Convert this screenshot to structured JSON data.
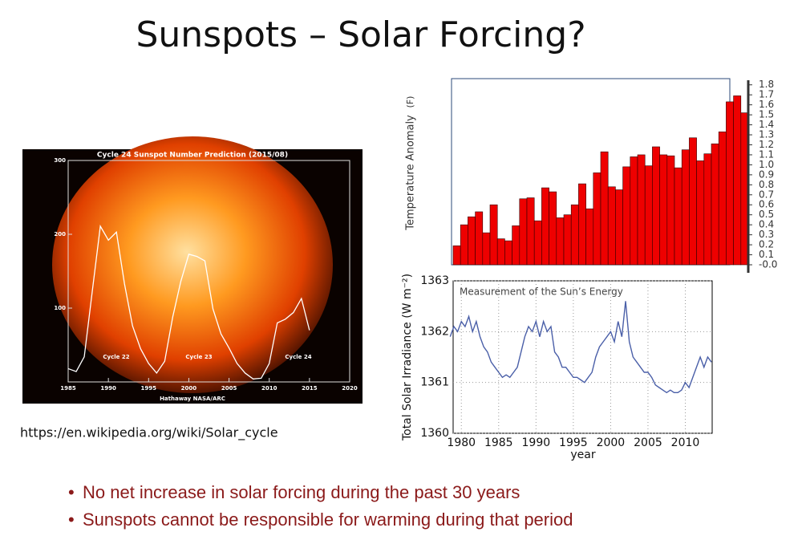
{
  "title": "Sunspots – Solar Forcing?",
  "source_url": "https://en.wikipedia.org/wiki/Solar_cycle",
  "bullets": [
    "No net increase in solar forcing during the past 30 years",
    "Sunspots cannot be responsible for warming during that period"
  ],
  "chart_data": [
    {
      "type": "line",
      "title": "Cycle 24 Sunspot Number Prediction (2015/08)",
      "credit": "Hathaway NASA/ARC",
      "annotations": [
        "Cycle 22",
        "Cycle 23",
        "Cycle 24"
      ],
      "x": [
        1985,
        1986,
        1987,
        1988,
        1989,
        1990,
        1991,
        1992,
        1993,
        1994,
        1995,
        1996,
        1997,
        1998,
        1999,
        2000,
        2001,
        2002,
        2003,
        2004,
        2005,
        2006,
        2007,
        2008,
        2009,
        2010,
        2011,
        2012,
        2013,
        2014,
        2015
      ],
      "series": [
        {
          "color": "#ffffff",
          "values": [
            18,
            14,
            34,
            123,
            211,
            192,
            203,
            133,
            76,
            45,
            25,
            12,
            28,
            88,
            136,
            173,
            170,
            164,
            99,
            65,
            46,
            25,
            12,
            4,
            5,
            25,
            80,
            85,
            94,
            113,
            70
          ]
        }
      ],
      "xlim": [
        1985,
        2020
      ],
      "xticks": [
        1985,
        1990,
        1995,
        2000,
        2005,
        2010,
        2015,
        2020
      ],
      "ylim": [
        0,
        300
      ],
      "yticks": [
        100,
        200,
        300
      ]
    },
    {
      "type": "bar",
      "y_label": "Temperature Anomaly",
      "y_unit": "(F)",
      "color": "#ee0000",
      "categories": [
        null,
        null,
        null,
        null,
        null,
        null,
        null,
        null,
        null,
        null,
        null,
        null,
        null,
        null,
        null,
        null,
        null,
        null,
        null,
        null,
        null,
        null,
        null,
        null,
        null,
        null,
        null,
        null,
        null,
        null,
        null,
        null,
        null,
        null,
        null,
        null,
        null,
        null,
        null,
        null
      ],
      "values": [
        0.19,
        0.4,
        0.48,
        0.53,
        0.32,
        0.6,
        0.26,
        0.24,
        0.39,
        0.66,
        0.67,
        0.44,
        0.77,
        0.73,
        0.47,
        0.5,
        0.6,
        0.81,
        0.56,
        0.92,
        1.13,
        0.78,
        0.75,
        0.98,
        1.08,
        1.1,
        0.99,
        1.18,
        1.1,
        1.09,
        0.97,
        1.15,
        1.27,
        1.04,
        1.11,
        1.21,
        1.33,
        1.63,
        1.69,
        1.52
      ],
      "ylim": [
        0,
        1.85
      ],
      "yticks": [
        1.8,
        1.7,
        1.6,
        1.5,
        1.4,
        1.3,
        1.2,
        1.1,
        {
          "value": 1,
          "label": "1.0"
        },
        0.9,
        0.8,
        0.7,
        0.6,
        0.5,
        0.4,
        0.3,
        0.2,
        0.1,
        {
          "value": 0,
          "label": "-0.0"
        }
      ]
    },
    {
      "type": "line",
      "title": "Measurement of the Sun’s Energy",
      "x_label": "year",
      "y_label": "Total Solar Irradiance (W m⁻²)",
      "grid": true,
      "x": [
        1978.5,
        1979,
        1979.5,
        1980,
        1980.5,
        1981,
        1981.5,
        1982,
        1982.5,
        1983,
        1983.5,
        1984,
        1984.5,
        1985,
        1985.5,
        1986,
        1986.5,
        1987,
        1987.5,
        1988,
        1988.5,
        1989,
        1989.5,
        1990,
        1990.5,
        1991,
        1991.5,
        1992,
        1992.5,
        1993,
        1993.5,
        1994,
        1994.5,
        1995,
        1995.5,
        1996,
        1996.5,
        1997,
        1997.5,
        1998,
        1998.5,
        1999,
        1999.5,
        2000,
        2000.5,
        2001,
        2001.5,
        2002,
        2002.5,
        2003,
        2003.5,
        2004,
        2004.5,
        2005,
        2005.5,
        2006,
        2006.5,
        2007,
        2007.5,
        2008,
        2008.5,
        2009,
        2009.5,
        2010,
        2010.5,
        2011,
        2011.5,
        2012,
        2012.5,
        2013,
        2013.5
      ],
      "series": [
        {
          "color": "#4a5fa8",
          "values": [
            1361.9,
            1362.1,
            1362.0,
            1362.2,
            1362.1,
            1362.3,
            1362.0,
            1362.2,
            1361.9,
            1361.7,
            1361.6,
            1361.4,
            1361.3,
            1361.2,
            1361.1,
            1361.15,
            1361.1,
            1361.2,
            1361.3,
            1361.6,
            1361.9,
            1362.1,
            1362.0,
            1362.2,
            1361.9,
            1362.2,
            1362.0,
            1362.1,
            1361.6,
            1361.5,
            1361.3,
            1361.3,
            1361.2,
            1361.1,
            1361.1,
            1361.05,
            1361.0,
            1361.1,
            1361.2,
            1361.5,
            1361.7,
            1361.8,
            1361.9,
            1362.0,
            1361.8,
            1362.2,
            1361.9,
            1362.6,
            1361.8,
            1361.5,
            1361.4,
            1361.3,
            1361.2,
            1361.2,
            1361.1,
            1360.95,
            1360.9,
            1360.85,
            1360.8,
            1360.85,
            1360.8,
            1360.8,
            1360.85,
            1361.0,
            1360.9,
            1361.1,
            1361.3,
            1361.5,
            1361.3,
            1361.5,
            1361.4
          ]
        }
      ],
      "xlim": [
        1978.9,
        2013.6
      ],
      "xticks": [
        1980,
        1985,
        1990,
        1995,
        2000,
        2005,
        2010
      ],
      "ylim": [
        1360,
        1363
      ],
      "yticks": [
        1360,
        1361,
        1362,
        1363
      ]
    }
  ]
}
